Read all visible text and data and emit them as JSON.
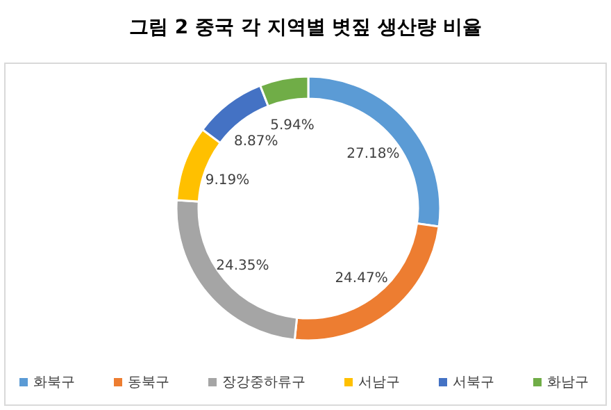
{
  "chart_data": {
    "type": "donut",
    "title": "그림 2 중국 각 지역별 볏짚 생산량 비율",
    "categories": [
      "화북구",
      "동북구",
      "장강중하류구",
      "서남구",
      "서북구",
      "화남구"
    ],
    "values": [
      27.18,
      24.47,
      24.35,
      9.19,
      8.87,
      5.94
    ],
    "value_labels": [
      "27.18%",
      "24.47%",
      "24.35%",
      "9.19%",
      "8.87%",
      "5.94%"
    ],
    "colors": [
      "#5b9bd5",
      "#ed7d31",
      "#a5a5a5",
      "#ffc000",
      "#4472c4",
      "#70ad47"
    ],
    "legend": "bottom"
  }
}
